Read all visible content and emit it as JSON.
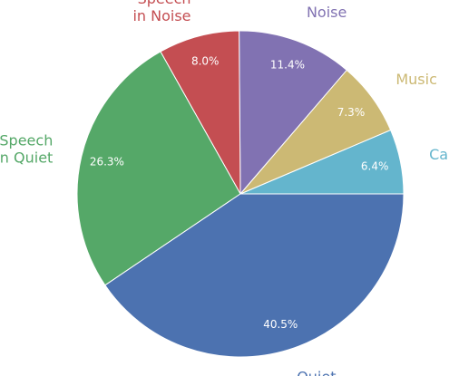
{
  "chart_data": {
    "type": "pie",
    "categories": [
      "Car",
      "Music",
      "Noise",
      "Speech\nin Noise",
      "Speech\nin Quiet",
      "Quiet"
    ],
    "values": [
      6.4,
      7.3,
      11.4,
      8.0,
      26.3,
      40.5
    ],
    "value_labels": [
      "6.4%",
      "7.3%",
      "11.4%",
      "8.0%",
      "26.3%",
      "40.5%"
    ],
    "colors": [
      "#64b5cd",
      "#ccb974",
      "#8172b2",
      "#c44e52",
      "#55a868",
      "#4c72b0"
    ],
    "start_angle": 0
  }
}
